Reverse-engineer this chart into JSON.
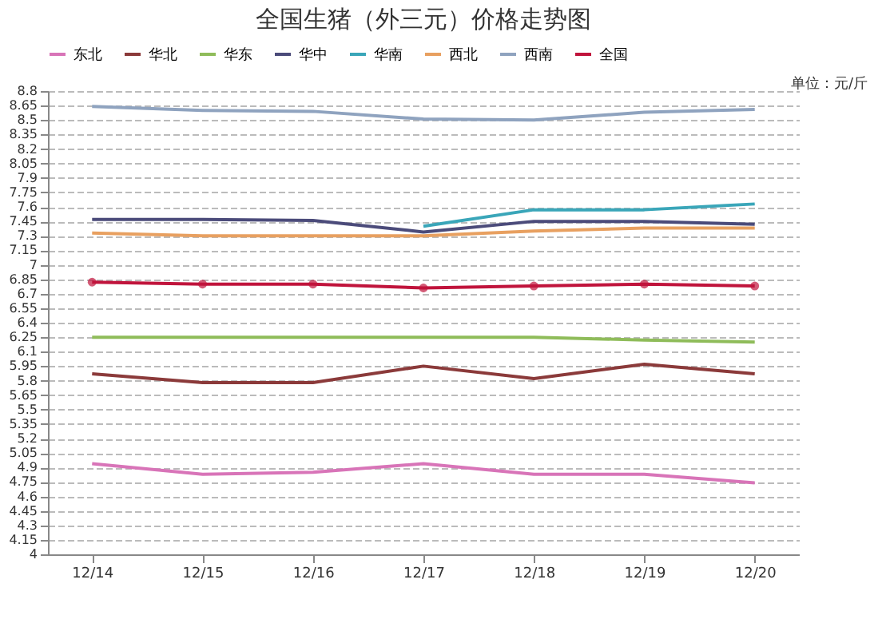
{
  "chart_data": {
    "type": "line",
    "title": "全国生猪（外三元）价格走势图",
    "annotations": [
      "单位：元/斤"
    ],
    "categories": [
      "12/14",
      "12/15",
      "12/16",
      "12/17",
      "12/18",
      "12/19",
      "12/20"
    ],
    "series": [
      {
        "name": "东北",
        "color": "#d874b8",
        "values": [
          4.94,
          4.83,
          4.85,
          4.94,
          4.83,
          4.83,
          4.74
        ]
      },
      {
        "name": "华北",
        "color": "#8b3a3a",
        "values": [
          5.87,
          5.78,
          5.78,
          5.95,
          5.82,
          5.97,
          5.87
        ]
      },
      {
        "name": "华东",
        "color": "#8fbc5a",
        "values": [
          6.25,
          6.25,
          6.25,
          6.25,
          6.25,
          6.22,
          6.2
        ]
      },
      {
        "name": "华中",
        "color": "#4b4b7a",
        "values": [
          7.47,
          7.47,
          7.46,
          7.34,
          7.45,
          7.45,
          7.42
        ]
      },
      {
        "name": "华南",
        "color": "#3aa6b9",
        "values": [
          null,
          null,
          null,
          7.4,
          7.57,
          7.57,
          7.63
        ]
      },
      {
        "name": "西北",
        "color": "#e8a060",
        "values": [
          7.33,
          7.3,
          7.3,
          7.3,
          7.35,
          7.38,
          7.38
        ]
      },
      {
        "name": "西南",
        "color": "#8fa3bf",
        "values": [
          8.64,
          8.6,
          8.59,
          8.51,
          8.5,
          8.58,
          8.61
        ]
      },
      {
        "name": "全国",
        "color": "#c0143c",
        "marker": "circle",
        "values": [
          6.82,
          6.8,
          6.8,
          6.76,
          6.78,
          6.8,
          6.78
        ]
      }
    ],
    "ylim": [
      4,
      8.8
    ],
    "yticks": [
      4,
      4.15,
      4.3,
      4.45,
      4.6,
      4.75,
      4.9,
      5.05,
      5.2,
      5.35,
      5.5,
      5.65,
      5.8,
      5.95,
      6.1,
      6.25,
      6.4,
      6.55,
      6.7,
      6.85,
      7,
      7.15,
      7.3,
      7.45,
      7.6,
      7.75,
      7.9,
      8.05,
      8.2,
      8.35,
      8.5,
      8.65,
      8.8
    ],
    "grid": "y",
    "legend": "top"
  }
}
